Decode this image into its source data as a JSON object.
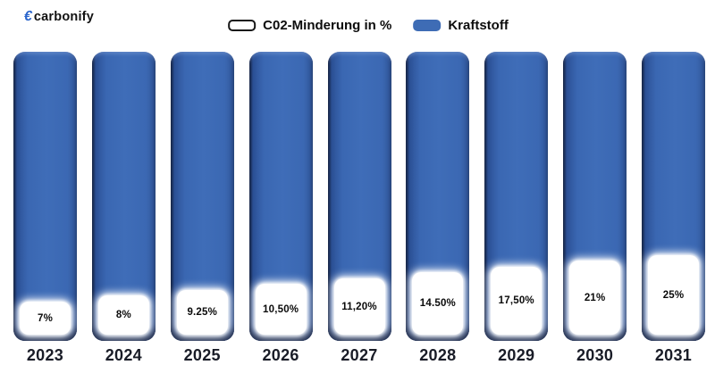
{
  "brand": {
    "name": "carbonify",
    "icon": "euro-swoosh-icon",
    "icon_glyph": "€"
  },
  "legend": {
    "items": [
      {
        "label": "C02-Minderung in %",
        "swatch": "white-outlined"
      },
      {
        "label": "Kraftstoff",
        "swatch": "blue"
      }
    ],
    "position": "top-center"
  },
  "colors": {
    "bar_blue": "#3A67B2",
    "bar_dark_navy": "#1B2A4E",
    "legend_blue": "#3E6CB5",
    "logo_blue": "#2B66CC",
    "text_dark": "#191C27",
    "background": "#FFFFFF"
  },
  "chart_data": {
    "type": "bar",
    "title": "",
    "xlabel": "",
    "ylabel": "",
    "grid": false,
    "axes_visible": false,
    "legend_position": "top-center",
    "categories": [
      "2023",
      "2024",
      "2025",
      "2026",
      "2027",
      "2028",
      "2029",
      "2030",
      "2031"
    ],
    "series": [
      {
        "name": "C02-Minderung in %",
        "values": [
          7,
          8,
          9.25,
          10.5,
          11.2,
          14.5,
          17.5,
          21,
          25
        ],
        "labels": [
          "7%",
          "8%",
          "9.25%",
          "10,50%",
          "11,20%",
          "14.50%",
          "17,50%",
          "21%",
          "25%"
        ],
        "style": "white rounded box inset at base of bar, height grows each year"
      },
      {
        "name": "Kraftstoff",
        "values": [
          100,
          100,
          100,
          100,
          100,
          100,
          100,
          100,
          100
        ],
        "style": "full-height blue 3d bar"
      }
    ]
  }
}
